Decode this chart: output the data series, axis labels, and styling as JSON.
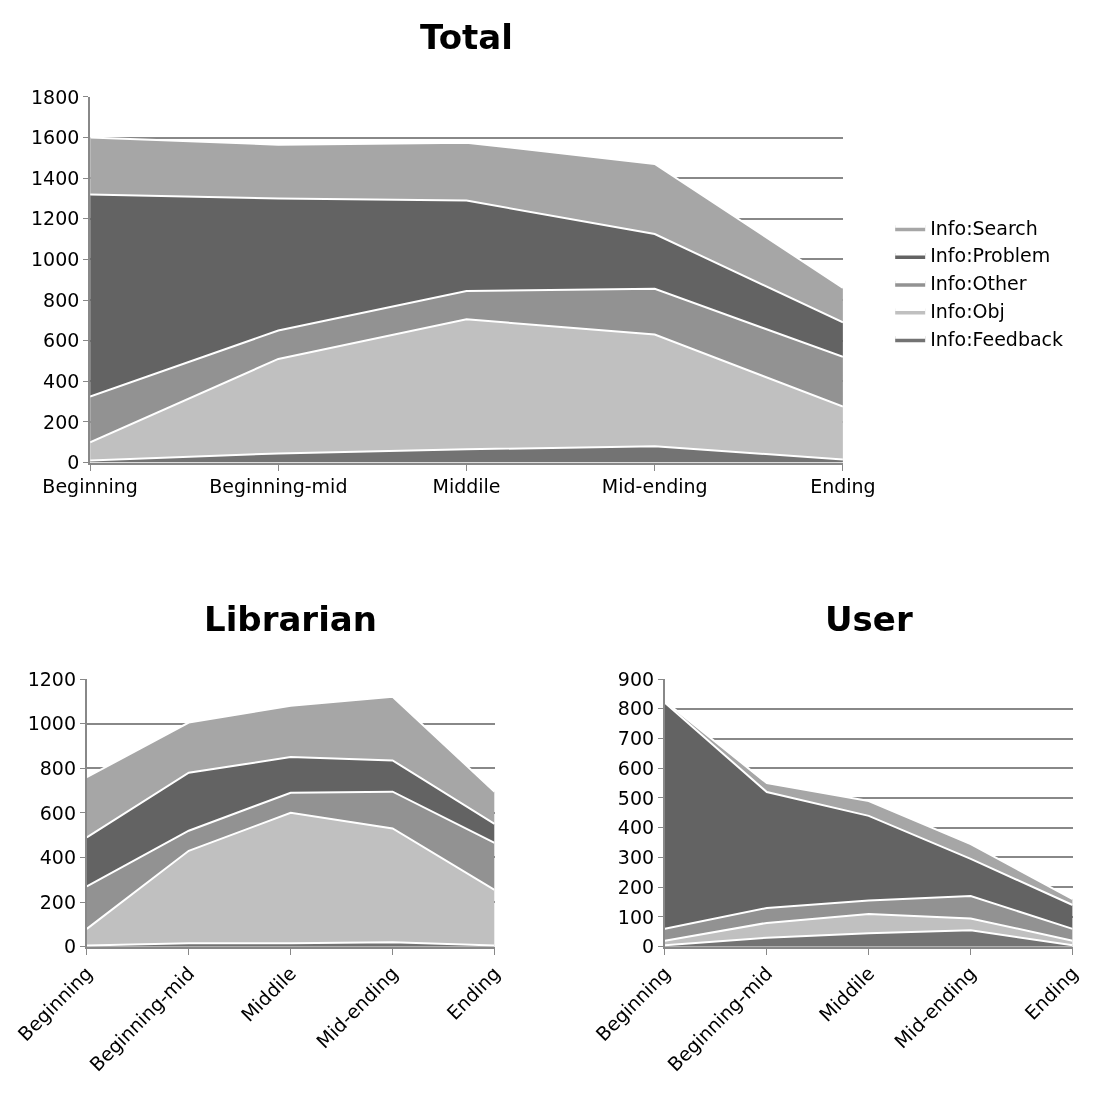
{
  "chart_data": [
    {
      "type": "area",
      "title": "Total",
      "stacked": true,
      "grid": "y",
      "legend": "right",
      "categories": [
        "Beginning",
        "Beginning-mid",
        "Middile",
        "Mid-ending",
        "Ending"
      ],
      "ylim": [
        0,
        1800
      ],
      "yticks": [
        0,
        200,
        400,
        600,
        800,
        1000,
        1200,
        1400,
        1600,
        1800
      ],
      "series": [
        {
          "name": "Info:Feedback",
          "color": "#737373",
          "values": [
            10,
            45,
            65,
            80,
            15
          ]
        },
        {
          "name": "Info:Obj",
          "color": "#c0c0c0",
          "values": [
            90,
            465,
            640,
            550,
            260
          ]
        },
        {
          "name": "Info:Other",
          "color": "#929292",
          "values": [
            225,
            140,
            140,
            225,
            245
          ]
        },
        {
          "name": "Info:Problem",
          "color": "#636363",
          "values": [
            995,
            650,
            445,
            270,
            170
          ]
        },
        {
          "name": "Info:Search",
          "color": "#a6a6a6",
          "values": [
            280,
            265,
            285,
            345,
            170
          ]
        }
      ]
    },
    {
      "type": "area",
      "title": "Librarian",
      "stacked": true,
      "grid": "y",
      "categories": [
        "Beginning",
        "Beginning-mid",
        "Middile",
        "Mid-ending",
        "Ending"
      ],
      "ylim": [
        0,
        1200
      ],
      "yticks": [
        0,
        200,
        400,
        600,
        800,
        1000,
        1200
      ],
      "series": [
        {
          "color": "#737373",
          "values": [
            5,
            15,
            15,
            20,
            5
          ]
        },
        {
          "color": "#c0c0c0",
          "values": [
            75,
            415,
            585,
            510,
            250
          ]
        },
        {
          "color": "#929292",
          "values": [
            190,
            90,
            90,
            165,
            210
          ]
        },
        {
          "color": "#636363",
          "values": [
            220,
            260,
            160,
            140,
            85
          ]
        },
        {
          "color": "#a6a6a6",
          "values": [
            270,
            225,
            230,
            285,
            145
          ]
        }
      ]
    },
    {
      "type": "area",
      "title": "User",
      "stacked": true,
      "grid": "y",
      "categories": [
        "Beginning",
        "Beginning-mid",
        "Middile",
        "Mid-ending",
        "Ending"
      ],
      "ylim": [
        0,
        900
      ],
      "yticks": [
        0,
        100,
        200,
        300,
        400,
        500,
        600,
        700,
        800,
        900
      ],
      "series": [
        {
          "color": "#737373",
          "values": [
            5,
            30,
            45,
            55,
            5
          ]
        },
        {
          "color": "#c0c0c0",
          "values": [
            15,
            50,
            65,
            40,
            15
          ]
        },
        {
          "color": "#929292",
          "values": [
            40,
            50,
            45,
            75,
            40
          ]
        },
        {
          "color": "#636363",
          "values": [
            760,
            390,
            285,
            125,
            80
          ]
        },
        {
          "color": "#a6a6a6",
          "values": [
            5,
            30,
            50,
            50,
            20
          ]
        }
      ]
    }
  ]
}
